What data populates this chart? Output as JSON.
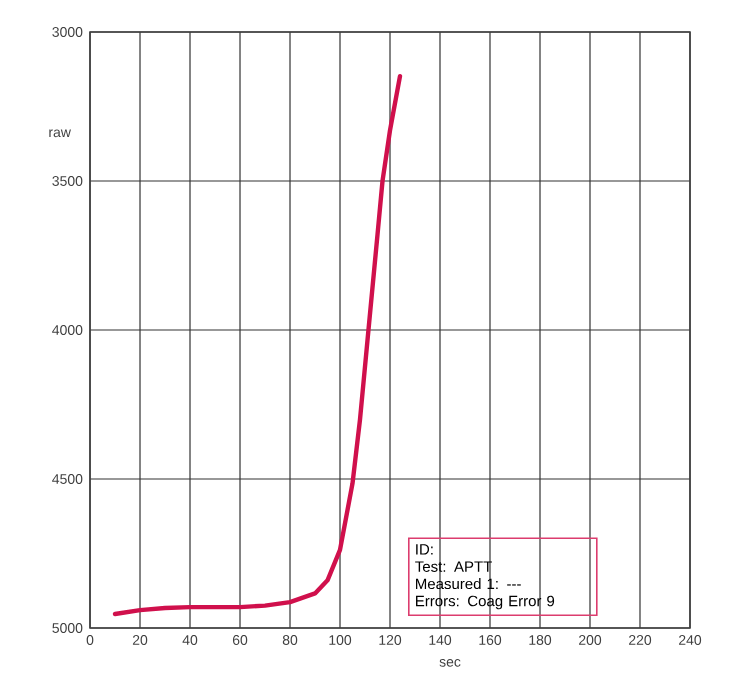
{
  "chart_data": {
    "type": "line",
    "xlabel": "sec",
    "ylabel": "raw",
    "x": [
      10,
      20,
      30,
      40,
      50,
      60,
      70,
      80,
      90,
      95,
      100,
      105,
      108,
      111,
      115,
      117,
      120,
      124
    ],
    "series": [
      {
        "color": "#d0104c",
        "values": [
          4953,
          4940,
          4933,
          4930,
          4930,
          4930,
          4925,
          4913,
          4884,
          4840,
          4738,
          4515,
          4300,
          4034,
          3680,
          3500,
          3330,
          3148
        ]
      }
    ],
    "xlim": [
      0,
      240
    ],
    "xticks": [
      0,
      20,
      40,
      60,
      80,
      100,
      120,
      140,
      160,
      180,
      200,
      220,
      240
    ],
    "ylim": [
      5000,
      3000
    ],
    "yticks": [
      3000,
      3500,
      4000,
      4500,
      5000
    ],
    "grid": true,
    "marker": "none",
    "line_style": "solid",
    "annotations": [
      "ID:",
      "Test: APTT",
      "Measured 1: ---",
      "Errors: Coag Error 9"
    ]
  }
}
